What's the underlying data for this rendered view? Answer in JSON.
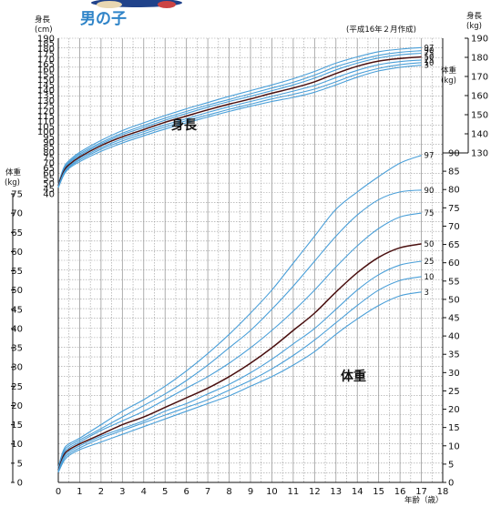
{
  "header": {
    "title": "男の子",
    "edition": "(平成16年２月作成)"
  },
  "axes": {
    "height_left_label": [
      "身長",
      "(cm)"
    ],
    "height_right_label": [
      "身長",
      "(kg)"
    ],
    "weight_left_label": [
      "体重",
      "(kg)"
    ],
    "weight_right_label": [
      "体重",
      "(kg)"
    ],
    "x_label": "年齢（歳）"
  },
  "colors": {
    "percentile_line": "#4a9fd8",
    "median_line": "#4a1010",
    "title": "#2f84c8"
  },
  "chart_data": {
    "type": "line",
    "x": [
      0,
      0.25,
      0.5,
      1,
      2,
      3,
      4,
      5,
      6,
      7,
      8,
      9,
      10,
      11,
      12,
      13,
      14,
      15,
      16,
      17
    ],
    "xlim": [
      0,
      18
    ],
    "x_ticks": [
      0,
      1,
      2,
      3,
      4,
      5,
      6,
      7,
      8,
      9,
      10,
      11,
      12,
      13,
      14,
      15,
      16,
      17,
      18
    ],
    "height_chart": {
      "label": "身長",
      "unit": "cm",
      "ylim": [
        40,
        190
      ],
      "left_ticks": [
        40,
        45,
        50,
        55,
        60,
        65,
        70,
        75,
        80,
        85,
        90,
        95,
        100,
        105,
        110,
        115,
        120,
        125,
        130,
        135,
        140,
        145,
        150,
        155,
        160,
        165,
        170,
        175,
        180,
        185,
        190
      ],
      "right_ticks": [
        130,
        140,
        150,
        160,
        170,
        180,
        190
      ],
      "series": [
        {
          "name": "97",
          "values": [
            49.5,
            65,
            72,
            80,
            91.5,
            101,
            108.5,
            115.5,
            122,
            128,
            134,
            139.5,
            145,
            151,
            158,
            166,
            172,
            177,
            179.5,
            181
          ]
        },
        {
          "name": "90",
          "values": [
            49,
            63.5,
            70.5,
            78.5,
            89.5,
            98.5,
            106,
            113,
            119.5,
            125.5,
            131,
            136.5,
            142,
            147.5,
            154.5,
            162.5,
            168.5,
            173.5,
            176.5,
            178
          ]
        },
        {
          "name": "75",
          "values": [
            48.5,
            62.5,
            69.5,
            77,
            88,
            97,
            104,
            111,
            117.5,
            123.5,
            129,
            134,
            139.5,
            145,
            151.5,
            159.5,
            166,
            171,
            174,
            175.5
          ]
        },
        {
          "name": "50",
          "values": [
            48,
            61.5,
            68,
            75.5,
            86.5,
            95,
            102,
            109,
            115,
            121,
            126.5,
            131.5,
            137,
            142,
            148,
            156,
            163,
            168,
            170.5,
            172
          ]
        },
        {
          "name": "25",
          "values": [
            47,
            60,
            66.5,
            74,
            84.5,
            93,
            100,
            106.5,
            112.5,
            118.5,
            124,
            129,
            134,
            139,
            144.5,
            152,
            159,
            164.5,
            167.5,
            169
          ]
        },
        {
          "name": "10",
          "values": [
            46.5,
            59,
            65.5,
            72.5,
            83,
            91,
            98,
            104.5,
            110.5,
            116,
            121.5,
            126.5,
            131.5,
            136,
            141,
            148,
            155.5,
            161,
            164.5,
            166.5
          ]
        },
        {
          "name": "3",
          "values": [
            46,
            58,
            64.5,
            71,
            81,
            89,
            96,
            102.5,
            108.5,
            114,
            119.5,
            124.5,
            129,
            133,
            138,
            145,
            152.5,
            158.5,
            162,
            164
          ]
        }
      ]
    },
    "weight_chart": {
      "label": "体重",
      "unit": "kg",
      "ylim": [
        0,
        75
      ],
      "left_ticks": [
        0,
        5,
        10,
        15,
        20,
        25,
        30,
        35,
        40,
        45,
        50,
        55,
        60,
        65,
        70,
        75
      ],
      "right_ticks": [
        0,
        5,
        10,
        15,
        20,
        25,
        30,
        35,
        40,
        45,
        50,
        55,
        60,
        65,
        70,
        75,
        80,
        85,
        90
      ],
      "series": [
        {
          "name": "97",
          "values": [
            4,
            8.5,
            10,
            11.5,
            15,
            18.5,
            21.5,
            25,
            29,
            33.5,
            38.5,
            44,
            50,
            57,
            64,
            71,
            75.5,
            79.5,
            83,
            85
          ]
        },
        {
          "name": "90",
          "values": [
            3.7,
            8,
            9.5,
            11,
            14,
            17,
            20,
            23,
            26.5,
            30.5,
            35,
            39.5,
            45,
            51,
            57.5,
            64,
            69.5,
            73.5,
            75.5,
            76
          ]
        },
        {
          "name": "75",
          "values": [
            3.5,
            7.5,
            9,
            10.5,
            13.5,
            16,
            18.5,
            21.5,
            24.5,
            27.5,
            31,
            35,
            39.5,
            44.5,
            50,
            56,
            61.5,
            66,
            69,
            70
          ]
        },
        {
          "name": "50",
          "values": [
            3.2,
            7,
            8.5,
            10,
            12.5,
            15,
            17,
            19.5,
            22,
            24.5,
            27.5,
            31,
            35,
            39.5,
            44,
            49.5,
            54.5,
            58.5,
            61,
            62
          ]
        },
        {
          "name": "25",
          "values": [
            3,
            6.5,
            8,
            9.5,
            12,
            14,
            16,
            18.5,
            20.5,
            23,
            25.5,
            28.5,
            32,
            36,
            40,
            45,
            50,
            54,
            56.5,
            57.5
          ]
        },
        {
          "name": "10",
          "values": [
            2.8,
            6,
            7.5,
            9,
            11.5,
            13.5,
            15.5,
            17.5,
            19.5,
            21.5,
            24,
            26.5,
            29.5,
            33,
            37,
            41.5,
            46,
            50,
            52.5,
            53.5
          ]
        },
        {
          "name": "3",
          "values": [
            2.6,
            5.5,
            7,
            8.5,
            10.5,
            12.5,
            14.5,
            16.5,
            18.5,
            20.5,
            22.5,
            25,
            27.5,
            30.5,
            34,
            38.5,
            42.5,
            46,
            48.5,
            49.5
          ]
        }
      ]
    }
  }
}
